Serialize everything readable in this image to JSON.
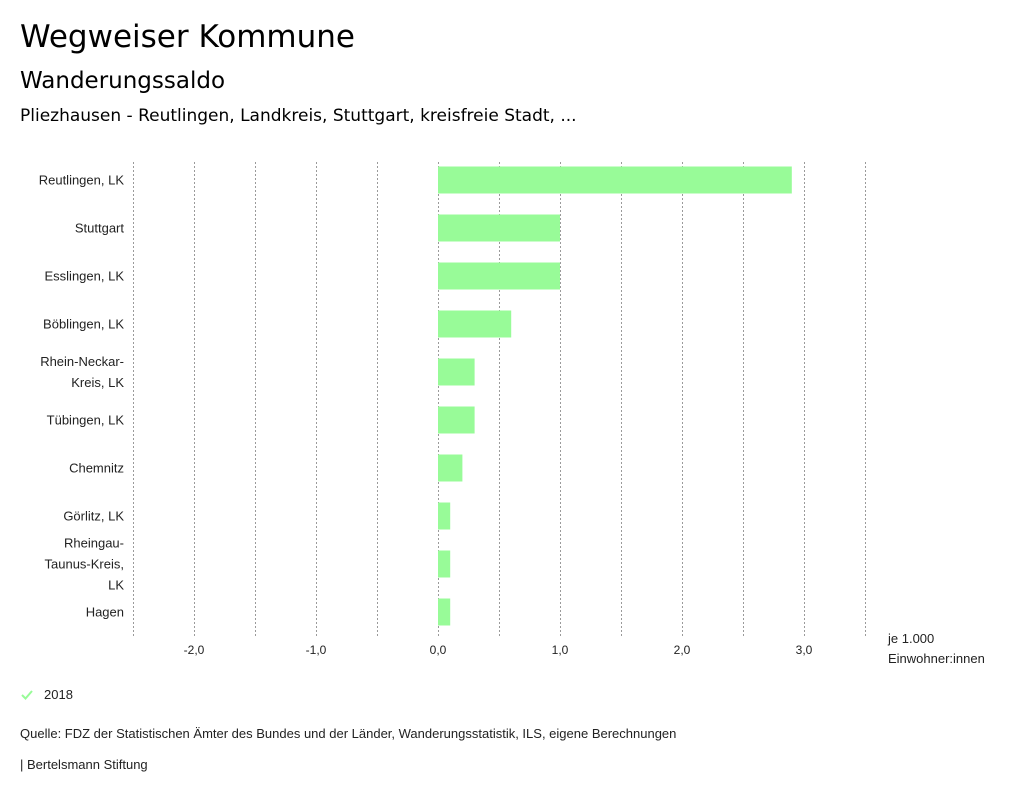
{
  "header": {
    "title": "Wegweiser Kommune",
    "subtitle": "Wanderungssaldo",
    "place": "Pliezhausen - Reutlingen, Landkreis, Stuttgart, kreisfreie Stadt, ..."
  },
  "chart_data": {
    "type": "bar",
    "orientation": "horizontal",
    "categories": [
      [
        "Reutlingen, LK"
      ],
      [
        "Stuttgart"
      ],
      [
        "Esslingen, LK"
      ],
      [
        "Böblingen, LK"
      ],
      [
        "Rhein-Neckar-",
        "Kreis, LK"
      ],
      [
        "Tübingen, LK"
      ],
      [
        "Chemnitz"
      ],
      [
        "Görlitz, LK"
      ],
      [
        "Rheingau-",
        "Taunus-Kreis,",
        "LK"
      ],
      [
        "Hagen"
      ]
    ],
    "series": [
      {
        "name": "2018",
        "values": [
          2.9,
          1.0,
          1.0,
          0.6,
          0.3,
          0.3,
          0.2,
          0.1,
          0.1,
          0.1
        ]
      }
    ],
    "xlim": [
      -2.5,
      3.5
    ],
    "xticks": [
      -2.0,
      -1.0,
      0.0,
      1.0,
      2.0,
      3.0
    ],
    "xtick_labels": [
      "-2,0",
      "-1,0",
      "0,0",
      "1,0",
      "2,0",
      "3,0"
    ],
    "grid": true,
    "bar_color": "#98fb98",
    "unit_label": [
      "je 1.000",
      "Einwohner:innen"
    ],
    "legend_position": "bottom-left"
  },
  "legend": {
    "label": "2018",
    "color": "#98fb98"
  },
  "footer": {
    "source": "Quelle: FDZ der Statistischen Ämter des Bundes und der Länder, Wanderungsstatistik, ILS, eigene Berechnungen",
    "credit": "| Bertelsmann Stiftung"
  }
}
